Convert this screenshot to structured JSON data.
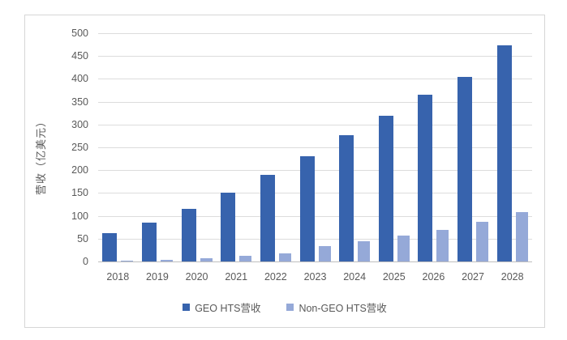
{
  "figure": {
    "y_axis_title": "营收（亿美元）"
  },
  "chart_data": {
    "type": "bar",
    "title": "",
    "xlabel": "",
    "ylabel": "营收（亿美元）",
    "categories": [
      "2018",
      "2019",
      "2020",
      "2021",
      "2022",
      "2023",
      "2024",
      "2025",
      "2026",
      "2027",
      "2028"
    ],
    "series": [
      {
        "name": "GEO HTS营收",
        "color": "#3763AD",
        "values": [
          62,
          85,
          115,
          150,
          189,
          231,
          277,
          320,
          365,
          405,
          473
        ]
      },
      {
        "name": "Non-GEO HTS营收",
        "color": "#95A9D8",
        "values": [
          2,
          3,
          7,
          12,
          18,
          33,
          45,
          57,
          70,
          86,
          109
        ]
      }
    ],
    "ylim": [
      0,
      500
    ],
    "ytick_step": 50,
    "yticks": [
      0,
      50,
      100,
      150,
      200,
      250,
      300,
      350,
      400,
      450,
      500
    ],
    "grid": true,
    "gridline_color": "#dcdcdc",
    "frame_border_color": "#d6d6d6",
    "tick_label_color": "#595959",
    "legend_position": "bottom"
  }
}
